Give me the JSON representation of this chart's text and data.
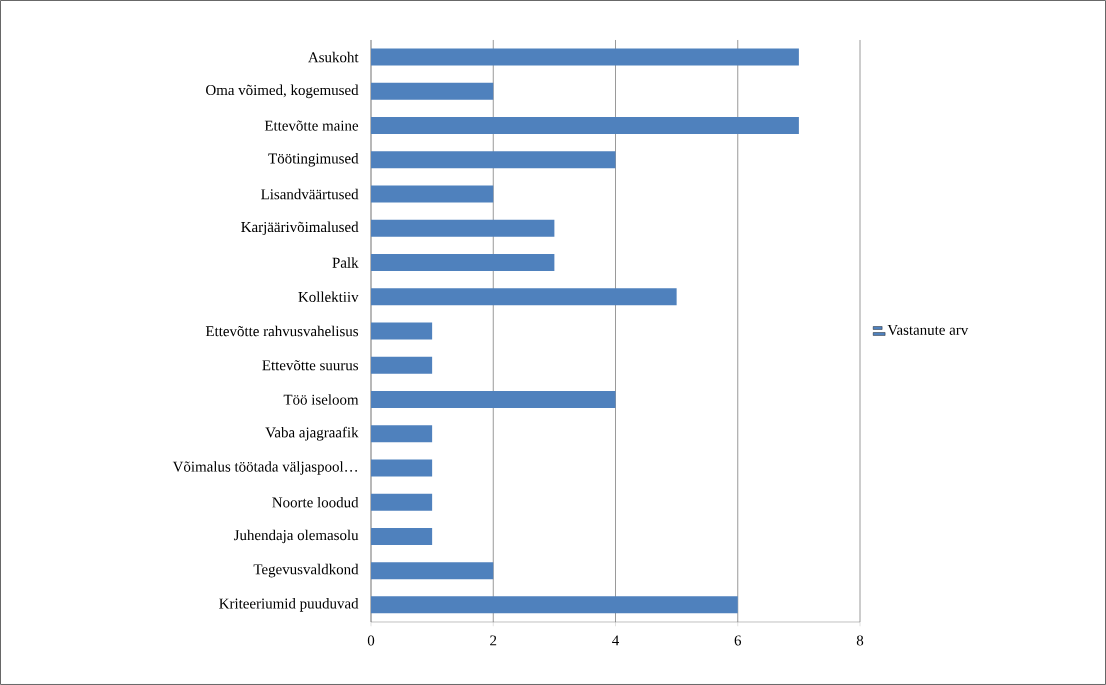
{
  "chart_data": {
    "type": "bar",
    "orientation": "horizontal",
    "categories": [
      "Asukoht",
      "Oma võimed, kogemused",
      "Ettevõtte maine",
      "Töötingimused",
      "Lisandväärtused",
      "Karjäärivõimalused",
      "Palk",
      "Kollektiiv",
      "Ettevõtte rahvusvahelisus",
      "Ettevõtte suurus",
      "Töö iseloom",
      "Vaba ajagraafik",
      "Võimalus töötada väljaspool…",
      "Noorte loodud",
      "Juhendaja olemasolu",
      "Tegevusvaldkond",
      "Kriteeriumid puuduvad"
    ],
    "series": [
      {
        "name": "Vastanute arv",
        "color": "#4f81bd",
        "values": [
          7,
          2,
          7,
          4,
          2,
          3,
          3,
          5,
          1,
          1,
          4,
          1,
          1,
          1,
          1,
          2,
          6
        ]
      }
    ],
    "xlim": [
      0,
      8
    ],
    "xticks": [
      0,
      2,
      4,
      6,
      8
    ],
    "grid": "x",
    "legend": "right"
  }
}
